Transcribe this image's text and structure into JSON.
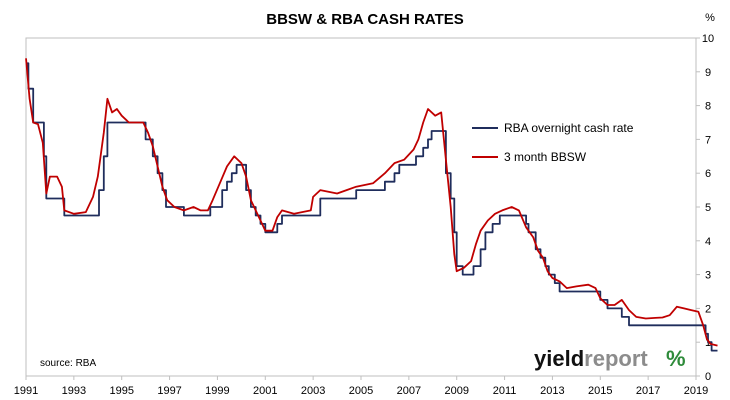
{
  "chart_data": {
    "type": "line",
    "title": "BBSW & RBA CASH RATES",
    "ylabel": "%",
    "xlim": [
      1991,
      2019
    ],
    "ylim": [
      0,
      10
    ],
    "x_ticks": [
      "1991",
      "1993",
      "1995",
      "1997",
      "1999",
      "2001",
      "2003",
      "2005",
      "2007",
      "2009",
      "2011",
      "2013",
      "2015",
      "2017",
      "2019"
    ],
    "y_ticks": [
      "0",
      "1",
      "2",
      "3",
      "4",
      "5",
      "6",
      "7",
      "8",
      "9",
      "10"
    ],
    "grid": false,
    "legend_position": "top-right",
    "annotation": "source: RBA",
    "series": [
      {
        "name": "RBA overnight cash rate",
        "color": "#1f2d5c",
        "step": true,
        "points": [
          [
            1991.0,
            9.25
          ],
          [
            1991.1,
            8.5
          ],
          [
            1991.3,
            7.5
          ],
          [
            1991.75,
            6.5
          ],
          [
            1991.85,
            5.25
          ],
          [
            1992.5,
            5.25
          ],
          [
            1992.6,
            4.75
          ],
          [
            1993.9,
            4.75
          ],
          [
            1994.05,
            5.5
          ],
          [
            1994.25,
            6.5
          ],
          [
            1994.4,
            7.5
          ],
          [
            1995.9,
            7.5
          ],
          [
            1996.0,
            7.0
          ],
          [
            1996.3,
            6.5
          ],
          [
            1996.5,
            6.0
          ],
          [
            1996.7,
            5.5
          ],
          [
            1996.85,
            5.0
          ],
          [
            1997.6,
            4.75
          ],
          [
            1998.5,
            4.75
          ],
          [
            1998.7,
            5.0
          ],
          [
            1999.2,
            5.5
          ],
          [
            1999.4,
            5.75
          ],
          [
            1999.6,
            6.0
          ],
          [
            1999.8,
            6.25
          ],
          [
            2000.2,
            5.5
          ],
          [
            2000.4,
            5.0
          ],
          [
            2000.6,
            4.75
          ],
          [
            2000.8,
            4.5
          ],
          [
            2001.0,
            4.25
          ],
          [
            2001.5,
            4.5
          ],
          [
            2001.7,
            4.75
          ],
          [
            2002.2,
            4.75
          ],
          [
            2002.9,
            4.75
          ],
          [
            2003.3,
            5.25
          ],
          [
            2003.9,
            5.25
          ],
          [
            2004.4,
            5.25
          ],
          [
            2004.8,
            5.5
          ],
          [
            2005.5,
            5.5
          ],
          [
            2006.0,
            5.75
          ],
          [
            2006.4,
            6.0
          ],
          [
            2006.6,
            6.25
          ],
          [
            2007.3,
            6.5
          ],
          [
            2007.6,
            6.75
          ],
          [
            2007.8,
            7.0
          ],
          [
            2007.95,
            7.25
          ],
          [
            2008.4,
            7.25
          ],
          [
            2008.55,
            6.0
          ],
          [
            2008.75,
            5.25
          ],
          [
            2008.9,
            4.25
          ],
          [
            2009.0,
            3.25
          ],
          [
            2009.25,
            3.0
          ],
          [
            2009.7,
            3.25
          ],
          [
            2010.0,
            3.75
          ],
          [
            2010.2,
            4.25
          ],
          [
            2010.5,
            4.5
          ],
          [
            2010.8,
            4.75
          ],
          [
            2011.8,
            4.75
          ],
          [
            2011.9,
            4.5
          ],
          [
            2012.0,
            4.25
          ],
          [
            2012.3,
            3.75
          ],
          [
            2012.5,
            3.5
          ],
          [
            2012.7,
            3.25
          ],
          [
            2012.85,
            3.0
          ],
          [
            2013.1,
            2.75
          ],
          [
            2013.3,
            2.5
          ],
          [
            2014.3,
            2.5
          ],
          [
            2015.0,
            2.25
          ],
          [
            2015.3,
            2.0
          ],
          [
            2015.9,
            1.75
          ],
          [
            2016.2,
            1.5
          ],
          [
            2018.6,
            1.5
          ],
          [
            2019.4,
            1.25
          ],
          [
            2019.5,
            1.0
          ],
          [
            2019.65,
            0.75
          ],
          [
            2019.9,
            0.75
          ]
        ]
      },
      {
        "name": "3 month BBSW",
        "color": "#c00000",
        "step": false,
        "points": [
          [
            1991.0,
            9.4
          ],
          [
            1991.15,
            8.2
          ],
          [
            1991.3,
            7.5
          ],
          [
            1991.5,
            7.45
          ],
          [
            1991.7,
            6.9
          ],
          [
            1991.85,
            5.4
          ],
          [
            1992.0,
            5.9
          ],
          [
            1992.3,
            5.9
          ],
          [
            1992.5,
            5.6
          ],
          [
            1992.6,
            4.9
          ],
          [
            1993.0,
            4.8
          ],
          [
            1993.5,
            4.85
          ],
          [
            1993.8,
            5.3
          ],
          [
            1994.0,
            5.9
          ],
          [
            1994.25,
            7.2
          ],
          [
            1994.4,
            8.2
          ],
          [
            1994.6,
            7.8
          ],
          [
            1994.8,
            7.9
          ],
          [
            1995.0,
            7.7
          ],
          [
            1995.3,
            7.5
          ],
          [
            1995.6,
            7.5
          ],
          [
            1995.9,
            7.5
          ],
          [
            1996.1,
            7.2
          ],
          [
            1996.3,
            6.8
          ],
          [
            1996.5,
            6.2
          ],
          [
            1996.7,
            5.6
          ],
          [
            1996.9,
            5.2
          ],
          [
            1997.2,
            5.0
          ],
          [
            1997.6,
            4.9
          ],
          [
            1998.0,
            5.0
          ],
          [
            1998.3,
            4.9
          ],
          [
            1998.6,
            4.9
          ],
          [
            1998.8,
            5.2
          ],
          [
            1999.1,
            5.7
          ],
          [
            1999.4,
            6.2
          ],
          [
            1999.7,
            6.5
          ],
          [
            2000.0,
            6.3
          ],
          [
            2000.2,
            5.9
          ],
          [
            2000.4,
            5.2
          ],
          [
            2000.6,
            4.9
          ],
          [
            2000.8,
            4.6
          ],
          [
            2001.0,
            4.3
          ],
          [
            2001.3,
            4.3
          ],
          [
            2001.5,
            4.7
          ],
          [
            2001.7,
            4.9
          ],
          [
            2002.2,
            4.8
          ],
          [
            2002.9,
            4.9
          ],
          [
            2003.0,
            5.3
          ],
          [
            2003.3,
            5.5
          ],
          [
            2004.0,
            5.4
          ],
          [
            2004.4,
            5.5
          ],
          [
            2004.8,
            5.6
          ],
          [
            2005.5,
            5.7
          ],
          [
            2006.0,
            6.0
          ],
          [
            2006.4,
            6.3
          ],
          [
            2006.8,
            6.4
          ],
          [
            2007.2,
            6.7
          ],
          [
            2007.4,
            7.0
          ],
          [
            2007.6,
            7.5
          ],
          [
            2007.8,
            7.9
          ],
          [
            2008.1,
            7.7
          ],
          [
            2008.35,
            7.8
          ],
          [
            2008.55,
            6.4
          ],
          [
            2008.75,
            5.0
          ],
          [
            2008.9,
            3.6
          ],
          [
            2009.0,
            3.1
          ],
          [
            2009.3,
            3.2
          ],
          [
            2009.6,
            3.4
          ],
          [
            2009.8,
            3.9
          ],
          [
            2010.0,
            4.3
          ],
          [
            2010.3,
            4.6
          ],
          [
            2010.6,
            4.8
          ],
          [
            2010.9,
            4.9
          ],
          [
            2011.3,
            5.0
          ],
          [
            2011.6,
            4.9
          ],
          [
            2011.9,
            4.4
          ],
          [
            2012.2,
            4.1
          ],
          [
            2012.4,
            3.7
          ],
          [
            2012.6,
            3.5
          ],
          [
            2012.8,
            3.1
          ],
          [
            2013.0,
            2.9
          ],
          [
            2013.3,
            2.8
          ],
          [
            2013.6,
            2.6
          ],
          [
            2014.0,
            2.65
          ],
          [
            2014.5,
            2.7
          ],
          [
            2014.8,
            2.6
          ],
          [
            2015.0,
            2.3
          ],
          [
            2015.3,
            2.1
          ],
          [
            2015.6,
            2.1
          ],
          [
            2015.9,
            2.25
          ],
          [
            2016.2,
            1.95
          ],
          [
            2016.5,
            1.75
          ],
          [
            2016.9,
            1.7
          ],
          [
            2017.3,
            1.72
          ],
          [
            2017.6,
            1.73
          ],
          [
            2017.9,
            1.8
          ],
          [
            2018.2,
            2.05
          ],
          [
            2018.5,
            2.0
          ],
          [
            2018.8,
            1.95
          ],
          [
            2019.1,
            1.9
          ],
          [
            2019.3,
            1.5
          ],
          [
            2019.45,
            1.1
          ],
          [
            2019.6,
            0.95
          ],
          [
            2019.9,
            0.9
          ]
        ]
      }
    ]
  },
  "logo": {
    "text_dark": "yield",
    "text_grey": "report",
    "symbol": "%",
    "colors": {
      "dark": "#111111",
      "grey": "#8c8c8c",
      "green": "#2e8b3a",
      "red": "#c00000"
    }
  }
}
